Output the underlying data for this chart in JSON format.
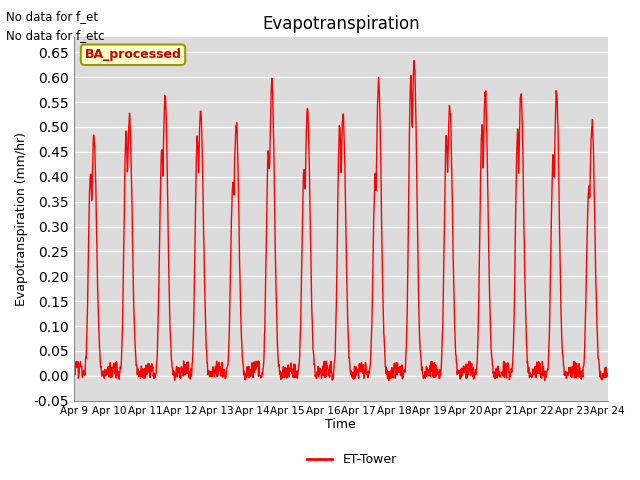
{
  "title": "Evapotranspiration",
  "ylabel": "Evapotranspiration (mm/hr)",
  "xlabel": "Time",
  "ylim": [
    -0.05,
    0.68
  ],
  "yticks": [
    -0.05,
    0.0,
    0.05,
    0.1,
    0.15,
    0.2,
    0.25,
    0.3,
    0.35,
    0.4,
    0.45,
    0.5,
    0.55,
    0.6,
    0.65
  ],
  "xtick_labels": [
    "Apr 9",
    "Apr 10",
    "Apr 11",
    "Apr 12",
    "Apr 13",
    "Apr 14",
    "Apr 15",
    "Apr 16",
    "Apr 17",
    "Apr 18",
    "Apr 19",
    "Apr 20",
    "Apr 21",
    "Apr 22",
    "Apr 23",
    "Apr 24"
  ],
  "line_color": "#FF0000",
  "line_width": 1.0,
  "fig_bg_color": "#FFFFFF",
  "plot_bg_color": "#DCDCDC",
  "legend_label": "ET-Tower",
  "legend_color": "#FF0000",
  "annotation1": "No data for f_et",
  "annotation2": "No data for f_etc",
  "box_label": "BA_processed",
  "box_bg": "#FFFFCC",
  "box_border": "#999900",
  "day_peaks": [
    0.48,
    0.52,
    0.56,
    0.54,
    0.51,
    0.59,
    0.53,
    0.525,
    0.59,
    0.63,
    0.54,
    0.57,
    0.57,
    0.57,
    0.51
  ],
  "day_secondary_peaks": [
    0.41,
    0.49,
    0.46,
    0.48,
    0.39,
    0.45,
    0.42,
    0.5,
    0.4,
    0.6,
    0.48,
    0.5,
    0.49,
    0.45,
    0.38
  ]
}
